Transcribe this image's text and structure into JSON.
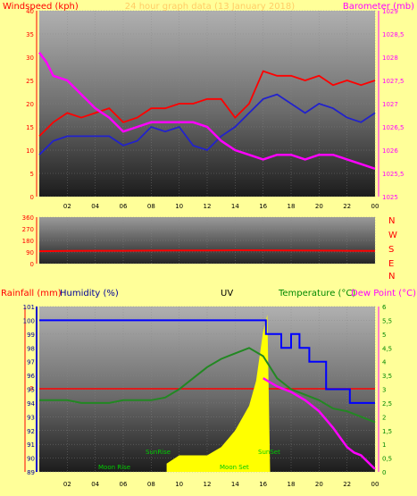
{
  "panel1": {
    "title_left": "Windspeed (kph)",
    "title_center": "24 hour graph data (13 January 2018)",
    "title_right": "Barometer (mb)",
    "colors": {
      "wind": "#ff0000",
      "gust": "#2222cc",
      "baro": "#ff00ff",
      "left_axis": "#ff0000",
      "right_axis": "#ff00ff"
    }
  },
  "panel2": {
    "compass": [
      "N",
      "W",
      "S",
      "E",
      "N"
    ],
    "colors": {
      "dir": "#ff0000",
      "compass": "#ff0000"
    }
  },
  "panel3": {
    "title_rain": "Rainfall (mm)",
    "title_humidity": "Humidity (%)",
    "title_uv": "UV",
    "title_temp": "Temperature (°C)",
    "title_dew": "Dew Point (°C)",
    "rain_zero": "0",
    "annotations": {
      "sunrise": "SunRise",
      "sunset": "SunSet",
      "moonrise": "Moon Rise",
      "moonset": "Moon Set"
    },
    "colors": {
      "rain_axis": "#ff0000",
      "humidity_axis": "#0000ff",
      "humidity": "#0000ff",
      "temp": "#228822",
      "dew": "#ff00ff",
      "uv": "#ffff00",
      "rain": "#ff0000",
      "right_axis": "#008800"
    }
  },
  "chart_data": [
    {
      "type": "line",
      "x_ticks": [
        "02",
        "04",
        "06",
        "08",
        "10",
        "12",
        "14",
        "16",
        "18",
        "20",
        "22",
        "00"
      ],
      "ylim_left": [
        0,
        40
      ],
      "ylim_right": [
        1025,
        1029
      ],
      "y_ticks_left": [
        "0",
        "5",
        "10",
        "15",
        "20",
        "25",
        "30",
        "35",
        "40"
      ],
      "y_ticks_right": [
        "1025",
        "1025,5",
        "1026",
        "1026,5",
        "1027",
        "1027,5",
        "1028",
        "1028,5",
        "1029"
      ],
      "series": [
        {
          "axis": "left",
          "hours": [
            0,
            1,
            2,
            3,
            4,
            5,
            6,
            7,
            8,
            9,
            10,
            11,
            12,
            13,
            14,
            15,
            16,
            17,
            18,
            19,
            20,
            21,
            22,
            23,
            24
          ],
          "values": [
            13,
            16,
            18,
            17,
            18,
            19,
            16,
            17,
            19,
            19,
            20,
            20,
            21,
            21,
            17,
            20,
            27,
            26,
            26,
            25,
            26,
            24,
            25,
            24,
            25
          ]
        },
        {
          "axis": "left",
          "hours": [
            0,
            1,
            2,
            3,
            4,
            5,
            6,
            7,
            8,
            9,
            10,
            11,
            12,
            13,
            14,
            15,
            16,
            17,
            18,
            19,
            20,
            21,
            22,
            23,
            24
          ],
          "values": [
            9,
            12,
            13,
            13,
            13,
            13,
            11,
            12,
            15,
            14,
            15,
            11,
            10,
            13,
            15,
            18,
            21,
            22,
            20,
            18,
            20,
            19,
            17,
            16,
            18
          ]
        },
        {
          "axis": "right",
          "hours": [
            0,
            0.5,
            1,
            2,
            3,
            4,
            5,
            6,
            7,
            8,
            9,
            10,
            11,
            12,
            13,
            14,
            15,
            16,
            17,
            18,
            19,
            20,
            21,
            22,
            23,
            24
          ],
          "values": [
            1028.1,
            1027.9,
            1027.6,
            1027.5,
            1027.2,
            1026.9,
            1026.7,
            1026.4,
            1026.5,
            1026.6,
            1026.6,
            1026.6,
            1026.6,
            1026.5,
            1026.2,
            1026.0,
            1025.9,
            1025.8,
            1025.9,
            1025.9,
            1025.8,
            1025.9,
            1025.9,
            1025.8,
            1025.7,
            1025.6
          ]
        }
      ]
    },
    {
      "type": "line",
      "x_ticks": [],
      "ylim": [
        0,
        360
      ],
      "y_ticks": [
        "0",
        "90",
        "180",
        "270",
        "360"
      ],
      "series": [
        {
          "hours": [
            0,
            2,
            4,
            6,
            8,
            10,
            12,
            14,
            16,
            18,
            20,
            22,
            24
          ],
          "values": [
            96,
            98,
            100,
            100,
            101,
            102,
            102,
            104,
            103,
            102,
            101,
            100,
            98
          ]
        }
      ]
    },
    {
      "type": "line",
      "x_ticks": [
        "02",
        "04",
        "06",
        "08",
        "10",
        "12",
        "14",
        "16",
        "18",
        "20",
        "22",
        "00"
      ],
      "ylim_humidity": [
        89,
        101
      ],
      "y_ticks_humidity": [
        "89",
        "90",
        "91",
        "92",
        "93",
        "94",
        "95",
        "96",
        "97",
        "98",
        "99",
        "100",
        "101"
      ],
      "ylim_temp": [
        0,
        6
      ],
      "y_ticks_temp": [
        "0",
        "0,5",
        "1",
        "1,5",
        "2",
        "2,5",
        "3",
        "3,5",
        "4",
        "4,5",
        "5",
        "5,5",
        "6"
      ],
      "series": [
        {
          "axis": "humidity",
          "hours": [
            0,
            16.2,
            16.2,
            17.3,
            17.3,
            18,
            18,
            18.6,
            18.6,
            19.3,
            19.3,
            20.5,
            20.5,
            22.2,
            22.2,
            24
          ],
          "values": [
            100,
            100,
            99,
            99,
            98,
            98,
            99,
            99,
            98,
            98,
            97,
            97,
            95,
            95,
            94,
            94
          ]
        },
        {
          "axis": "temp",
          "hours": [
            0,
            1,
            2,
            3,
            4,
            5,
            6,
            7,
            8,
            9,
            10,
            11,
            12,
            13,
            14,
            15,
            16,
            17,
            18,
            19,
            20,
            21,
            22,
            23,
            24
          ],
          "values": [
            2.6,
            2.6,
            2.6,
            2.5,
            2.5,
            2.5,
            2.6,
            2.6,
            2.6,
            2.7,
            3.0,
            3.4,
            3.8,
            4.1,
            4.3,
            4.5,
            4.2,
            3.4,
            3.0,
            2.8,
            2.6,
            2.3,
            2.2,
            2.0,
            1.8
          ]
        },
        {
          "axis": "temp",
          "hours": [
            16,
            17,
            18,
            19,
            20,
            21,
            22,
            22.5,
            23,
            24
          ],
          "values": [
            3.4,
            3.1,
            2.9,
            2.6,
            2.2,
            1.6,
            0.9,
            0.7,
            0.6,
            0.1
          ]
        },
        {
          "axis": "uv",
          "hours": [
            9.1,
            10,
            11,
            12,
            13,
            14,
            15,
            15.5,
            16,
            16.3,
            16.5
          ],
          "values": [
            0.05,
            0.1,
            0.1,
            0.1,
            0.15,
            0.25,
            0.4,
            0.55,
            0.85,
            0.95,
            0.0
          ]
        }
      ],
      "rain_total": 0
    }
  ]
}
